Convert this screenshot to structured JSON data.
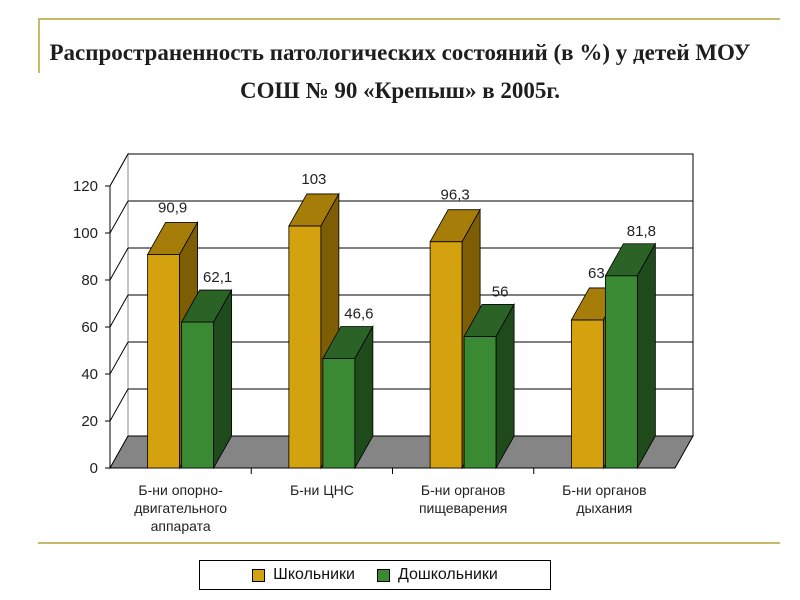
{
  "title": "Распространенность патологических состояний (в %) у детей МОУ СОШ № 90 «Крепыш» в 2005г.",
  "chart_data": {
    "type": "bar",
    "title": "Распространенность патологических состояний (в %) у детей МОУ СОШ № 90 «Крепыш» в 2005г.",
    "categories": [
      "Б-ни опорно-двигательного аппарата",
      "Б-ни ЦНС",
      "Б-ни органов пищеварения",
      "Б-ни органов дыхания"
    ],
    "category_lines": [
      [
        "Б-ни опорно-",
        "двигательного",
        "аппарата"
      ],
      [
        "Б-ни ЦНС"
      ],
      [
        "Б-ни органов",
        "пищеварения"
      ],
      [
        "Б-ни органов",
        "дыхания"
      ]
    ],
    "series": [
      {
        "name": "Школьники",
        "values": [
          90.9,
          103,
          96.3,
          63
        ],
        "labels": [
          "90,9",
          "103",
          "96,3",
          "63"
        ],
        "color": "#d4a20f",
        "top_color": "#a67d08",
        "side_color": "#7d5e05"
      },
      {
        "name": "Дошкольники",
        "values": [
          62.1,
          46.6,
          56,
          81.8
        ],
        "labels": [
          "62,1",
          "46,6",
          "56",
          "81,8"
        ],
        "color": "#3a8a33",
        "top_color": "#2b6327",
        "side_color": "#1f4a1b"
      }
    ],
    "yticks": [
      0,
      20,
      40,
      60,
      80,
      100,
      120
    ],
    "ylim": [
      0,
      120
    ],
    "grid": true,
    "legend_position": "bottom",
    "xlabel": "",
    "ylabel": ""
  }
}
